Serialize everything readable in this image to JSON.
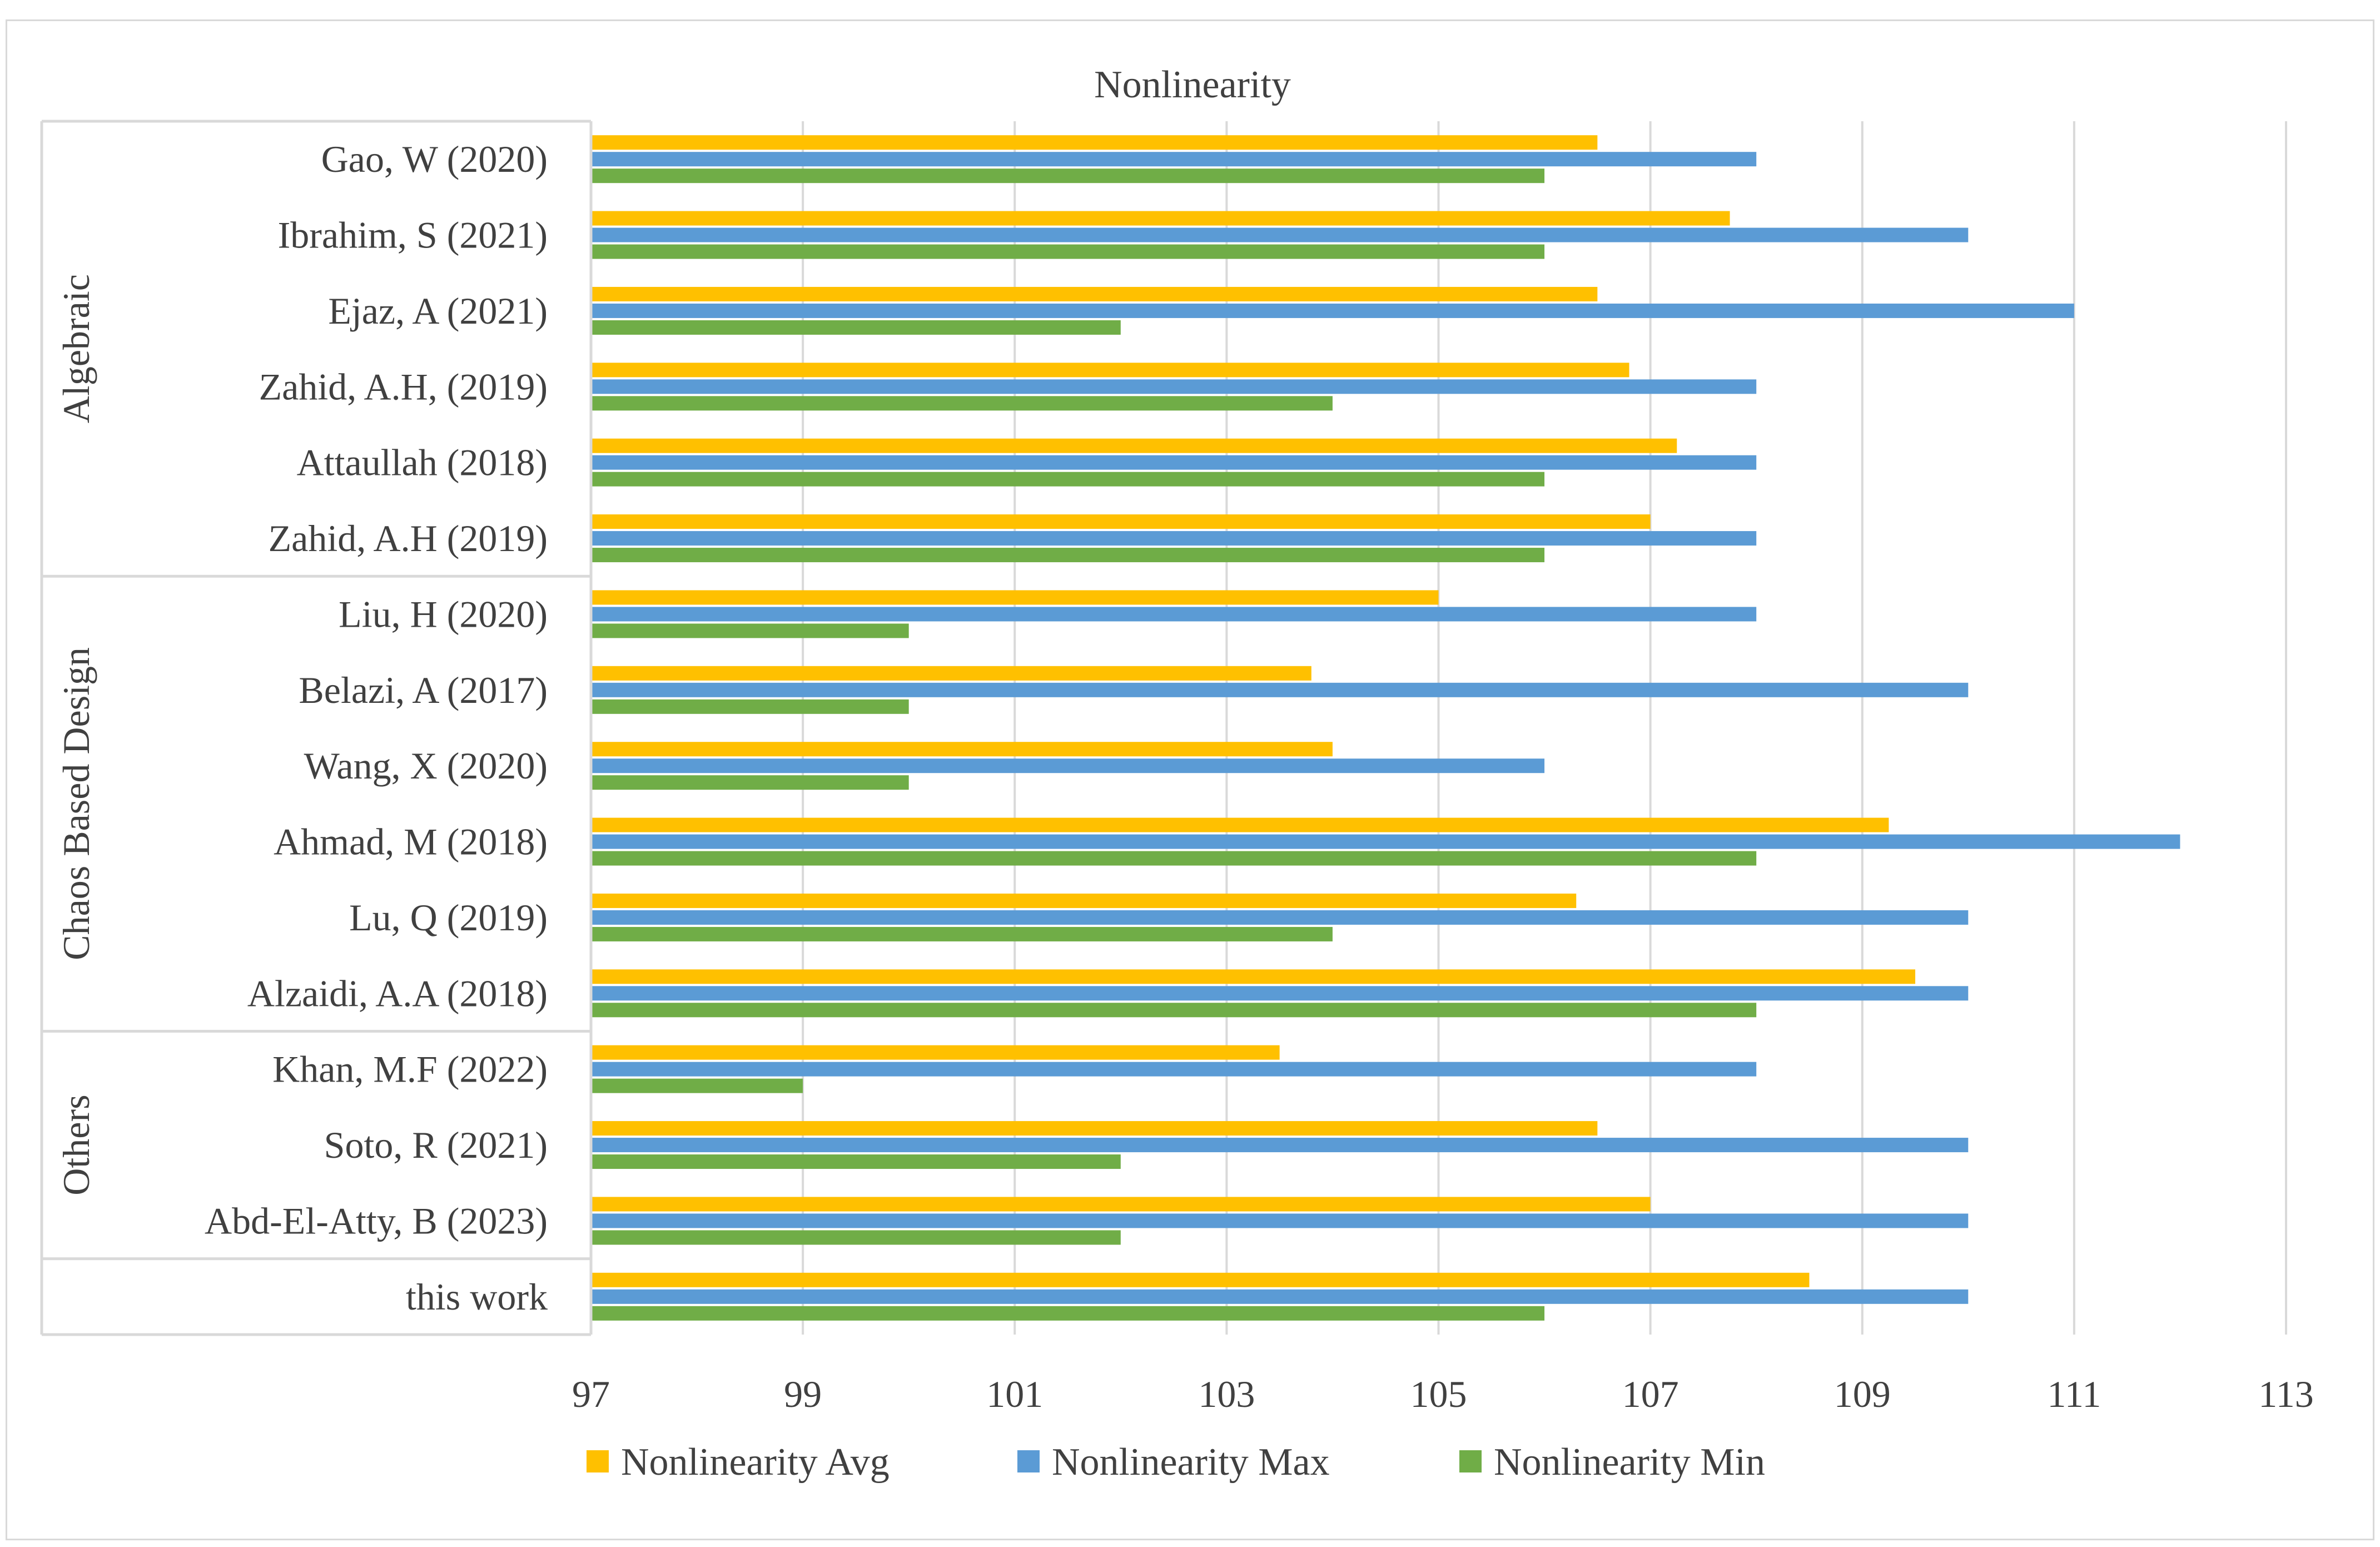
{
  "chart_data": {
    "type": "bar",
    "orientation": "horizontal",
    "title": "Nonlinearity",
    "xlabel": "",
    "ylabel": "",
    "xlim": [
      97,
      113
    ],
    "xticks": [
      97,
      99,
      101,
      103,
      105,
      107,
      109,
      111,
      113
    ],
    "grid": true,
    "legend_position": "bottom",
    "groups": [
      {
        "name": "Algebraic",
        "categories": [
          "Gao, W (2020)",
          "Ibrahim, S (2021)",
          "Ejaz, A (2021)",
          "Zahid, A.H, (2019)",
          "Attaullah (2018)",
          "Zahid, A.H (2019)"
        ]
      },
      {
        "name": "Chaos Based Design",
        "categories": [
          "Liu, H (2020)",
          "Belazi, A (2017)",
          "Wang, X (2020)",
          "Ahmad, M (2018)",
          "Lu, Q (2019)",
          "Alzaidi, A.A (2018)"
        ]
      },
      {
        "name": "Others",
        "categories": [
          "Khan, M.F (2022)",
          "Soto, R (2021)",
          "Abd-El-Atty, B (2023)"
        ]
      },
      {
        "name": "",
        "categories": [
          "this work"
        ]
      }
    ],
    "categories": [
      "Gao, W (2020)",
      "Ibrahim, S (2021)",
      "Ejaz, A (2021)",
      "Zahid, A.H, (2019)",
      "Attaullah (2018)",
      "Zahid, A.H (2019)",
      "Liu, H (2020)",
      "Belazi, A (2017)",
      "Wang, X (2020)",
      "Ahmad, M (2018)",
      "Lu, Q (2019)",
      "Alzaidi, A.A (2018)",
      "Khan, M.F (2022)",
      "Soto, R (2021)",
      "Abd-El-Atty, B (2023)",
      "this work"
    ],
    "series": [
      {
        "name": "Nonlinearity Avg",
        "color": "#ffc000",
        "values": [
          106.5,
          107.75,
          106.5,
          106.8,
          107.25,
          107.0,
          105.0,
          103.8,
          104.0,
          109.25,
          106.3,
          109.5,
          103.5,
          106.5,
          107.0,
          108.5
        ]
      },
      {
        "name": "Nonlinearity Max",
        "color": "#5b9bd5",
        "values": [
          108,
          110,
          111,
          108,
          108,
          108,
          108,
          110,
          106,
          112,
          110,
          110,
          108,
          110,
          110,
          110
        ]
      },
      {
        "name": "Nonlinearity Min",
        "color": "#70ad47",
        "values": [
          106,
          106,
          102,
          104,
          106,
          106,
          100,
          100,
          100,
          108,
          104,
          108,
          99,
          102,
          102,
          106
        ]
      }
    ]
  }
}
